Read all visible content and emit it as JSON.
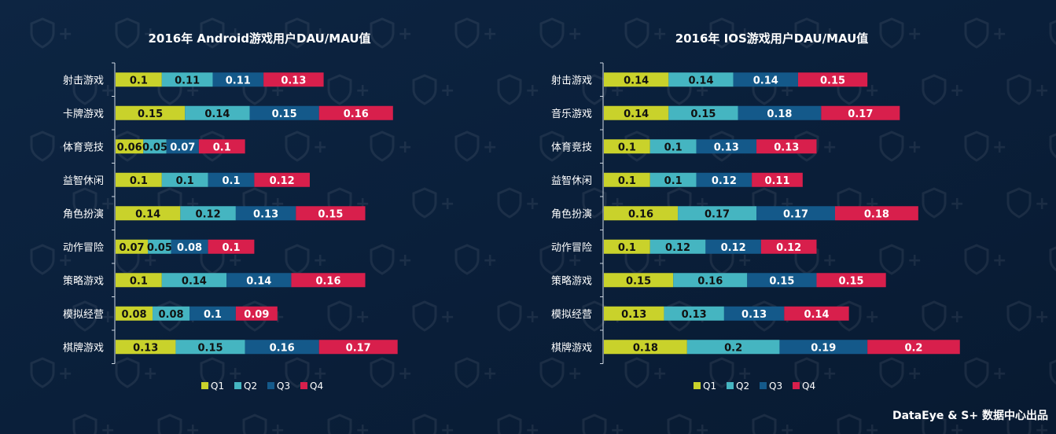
{
  "credit": "DataEye & S+ 数据中心出品",
  "colors": {
    "background": "#0a1f3a",
    "axis": "#cfd8e3",
    "series": [
      "#c9d22b",
      "#45b5c1",
      "#14598a",
      "#d81f4c"
    ],
    "label_dark": "#111111",
    "label_light": "#ffffff"
  },
  "chart_data": [
    {
      "type": "bar",
      "orientation": "horizontal",
      "stacked": true,
      "title": "2016年 Android游戏用户DAU/MAU值",
      "categories": [
        "射击游戏",
        "卡牌游戏",
        "体育竞技",
        "益智休闲",
        "角色扮演",
        "动作冒险",
        "策略游戏",
        "模拟经营",
        "棋牌游戏"
      ],
      "series": [
        {
          "name": "Q1",
          "values": [
            0.1,
            0.15,
            0.06,
            0.1,
            0.14,
            0.07,
            0.1,
            0.08,
            0.13
          ],
          "labels": [
            "0.1",
            "0.15",
            "0.06",
            "0.1",
            "0.14",
            "0.07",
            "0.1",
            "0.08",
            "0.13"
          ]
        },
        {
          "name": "Q2",
          "values": [
            0.11,
            0.14,
            0.05,
            0.1,
            0.12,
            0.05,
            0.14,
            0.08,
            0.15
          ],
          "labels": [
            "0.11",
            "0.14",
            "0.05",
            "0.1",
            "0.12",
            "0.05",
            "0.14",
            "0.08",
            "0.15"
          ]
        },
        {
          "name": "Q3",
          "values": [
            0.11,
            0.15,
            0.07,
            0.1,
            0.13,
            0.08,
            0.14,
            0.1,
            0.16
          ],
          "labels": [
            "0.11",
            "0.15",
            "0.07",
            "0.1",
            "0.13",
            "0.08",
            "0.14",
            "0.1",
            "0.16"
          ]
        },
        {
          "name": "Q4",
          "values": [
            0.13,
            0.16,
            0.1,
            0.12,
            0.15,
            0.1,
            0.16,
            0.09,
            0.17
          ],
          "labels": [
            "0.13",
            "0.16",
            "0.1",
            "0.12",
            "0.15",
            "0.1",
            "0.16",
            "0.09",
            "0.17"
          ]
        }
      ],
      "legend_position": "bottom",
      "grid": false
    },
    {
      "type": "bar",
      "orientation": "horizontal",
      "stacked": true,
      "title": "2016年 IOS游戏用户DAU/MAU值",
      "categories": [
        "射击游戏",
        "音乐游戏",
        "体育竞技",
        "益智休闲",
        "角色扮演",
        "动作冒险",
        "策略游戏",
        "模拟经营",
        "棋牌游戏"
      ],
      "series": [
        {
          "name": "Q1",
          "values": [
            0.14,
            0.14,
            0.1,
            0.1,
            0.16,
            0.1,
            0.15,
            0.13,
            0.18
          ],
          "labels": [
            "0.14",
            "0.14",
            "0.1",
            "0.1",
            "0.16",
            "0.1",
            "0.15",
            "0.13",
            "0.18"
          ]
        },
        {
          "name": "Q2",
          "values": [
            0.14,
            0.15,
            0.1,
            0.1,
            0.17,
            0.12,
            0.16,
            0.13,
            0.2
          ],
          "labels": [
            "0.14",
            "0.15",
            "0.1",
            "0.1",
            "0.17",
            "0.12",
            "0.16",
            "0.13",
            "0.2"
          ]
        },
        {
          "name": "Q3",
          "values": [
            0.14,
            0.18,
            0.13,
            0.12,
            0.17,
            0.12,
            0.15,
            0.13,
            0.19
          ],
          "labels": [
            "0.14",
            "0.18",
            "0.13",
            "0.12",
            "0.17",
            "0.12",
            "0.15",
            "0.13",
            "0.19"
          ]
        },
        {
          "name": "Q4",
          "values": [
            0.15,
            0.17,
            0.13,
            0.11,
            0.18,
            0.12,
            0.15,
            0.14,
            0.2
          ],
          "labels": [
            "0.15",
            "0.17",
            "0.13",
            "0.11",
            "0.18",
            "0.12",
            "0.15",
            "0.14",
            "0.2"
          ]
        }
      ],
      "legend_position": "bottom",
      "grid": false
    }
  ]
}
